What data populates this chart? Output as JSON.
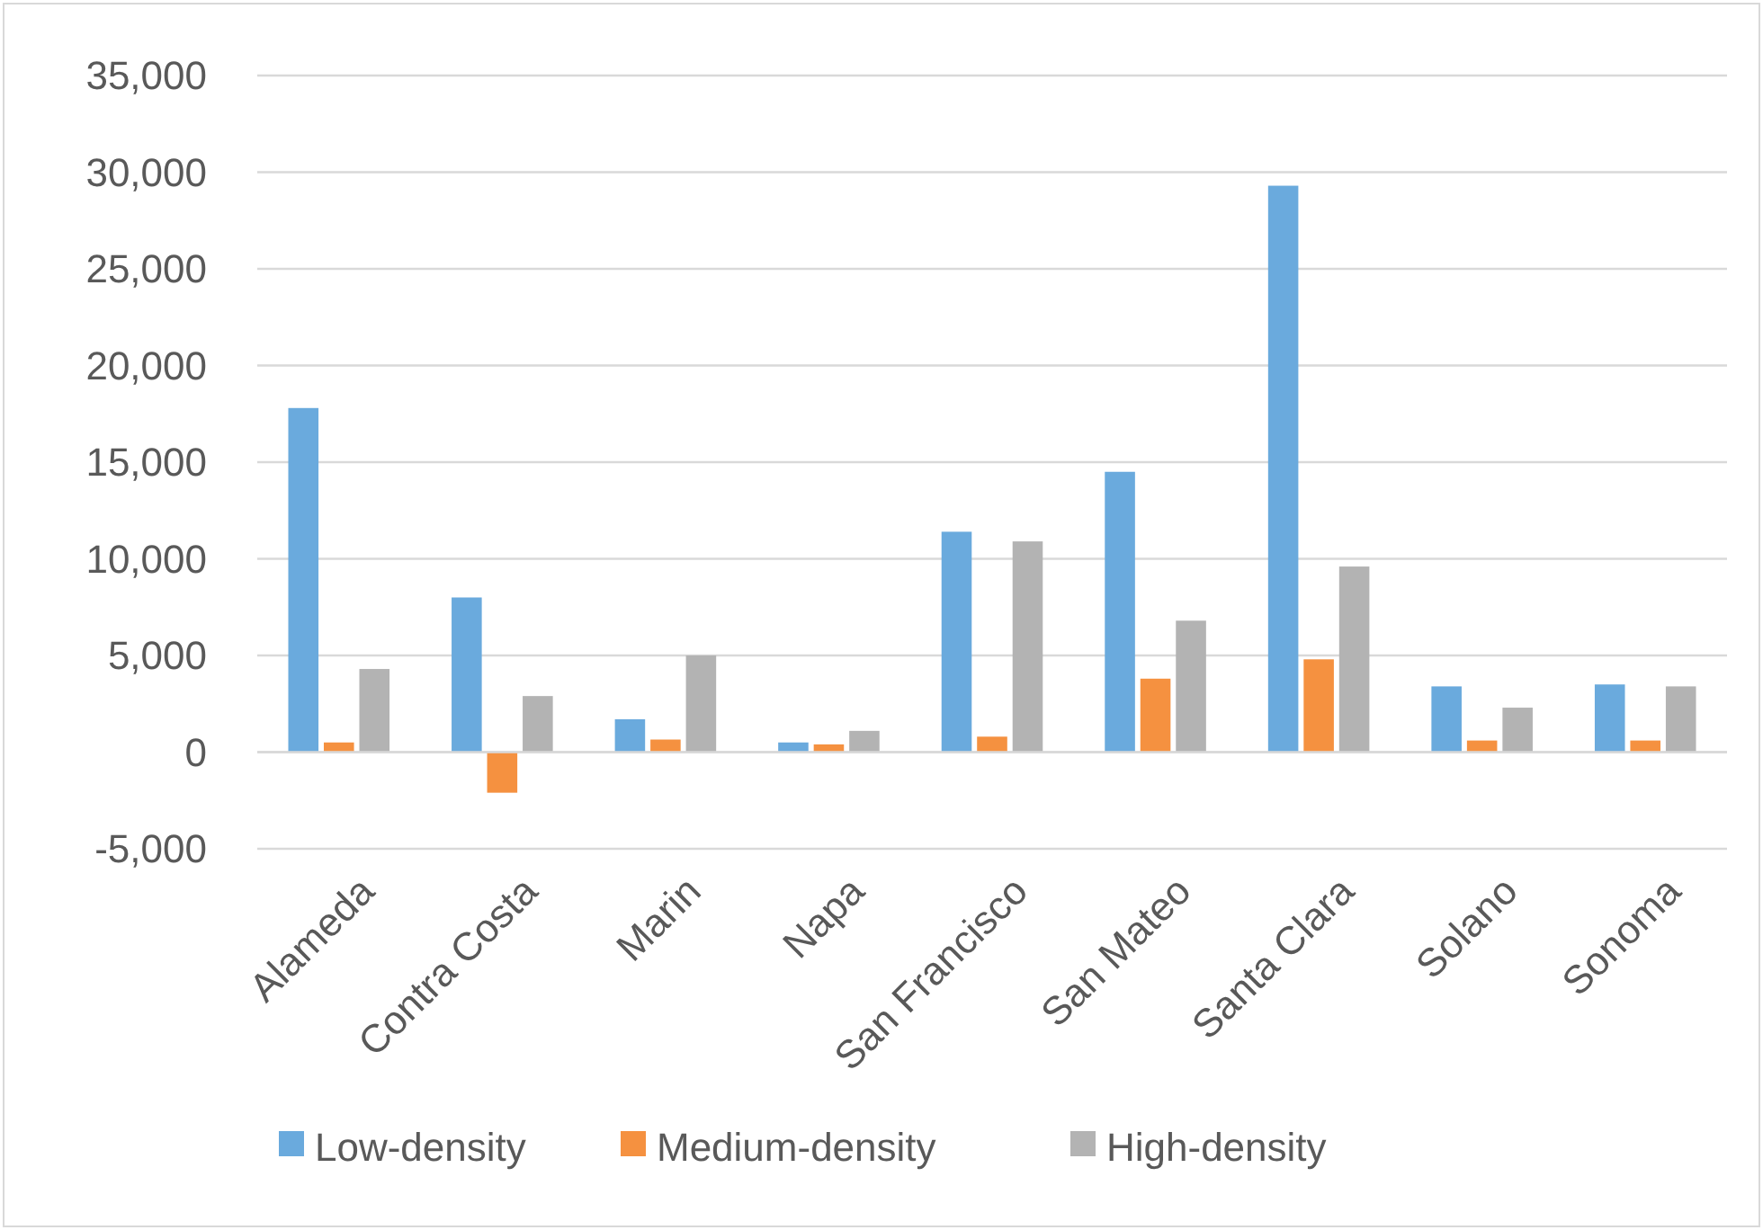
{
  "chart_data": {
    "type": "bar",
    "categories": [
      "Alameda",
      "Contra Costa",
      "Marin",
      "Napa",
      "San Francisco",
      "San Mateo",
      "Santa Clara",
      "Solano",
      "Sonoma"
    ],
    "series": [
      {
        "name": "Low-density",
        "color": "#6aaadd",
        "values": [
          17800,
          8000,
          1700,
          500,
          11400,
          14500,
          29300,
          3400,
          3500
        ]
      },
      {
        "name": "Medium-density",
        "color": "#f59140",
        "values": [
          500,
          -2100,
          650,
          400,
          800,
          3800,
          4800,
          600,
          600
        ]
      },
      {
        "name": "High-density",
        "color": "#b3b3b3",
        "values": [
          4300,
          2900,
          5000,
          1100,
          10900,
          6800,
          9600,
          2300,
          3400
        ]
      }
    ],
    "ylim": [
      -5000,
      35000
    ],
    "yticks": [
      {
        "value": -5000,
        "label": "-5,000"
      },
      0,
      {
        "value": 5000,
        "label": "5,000"
      },
      {
        "value": 10000,
        "label": "10,000"
      },
      {
        "value": 15000,
        "label": "15,000"
      },
      {
        "value": 20000,
        "label": "20,000"
      },
      {
        "value": 25000,
        "label": "25,000"
      },
      {
        "value": 30000,
        "label": "30,000"
      },
      {
        "value": 35000,
        "label": "35,000"
      }
    ],
    "grid": "y",
    "legend": "bottom"
  }
}
